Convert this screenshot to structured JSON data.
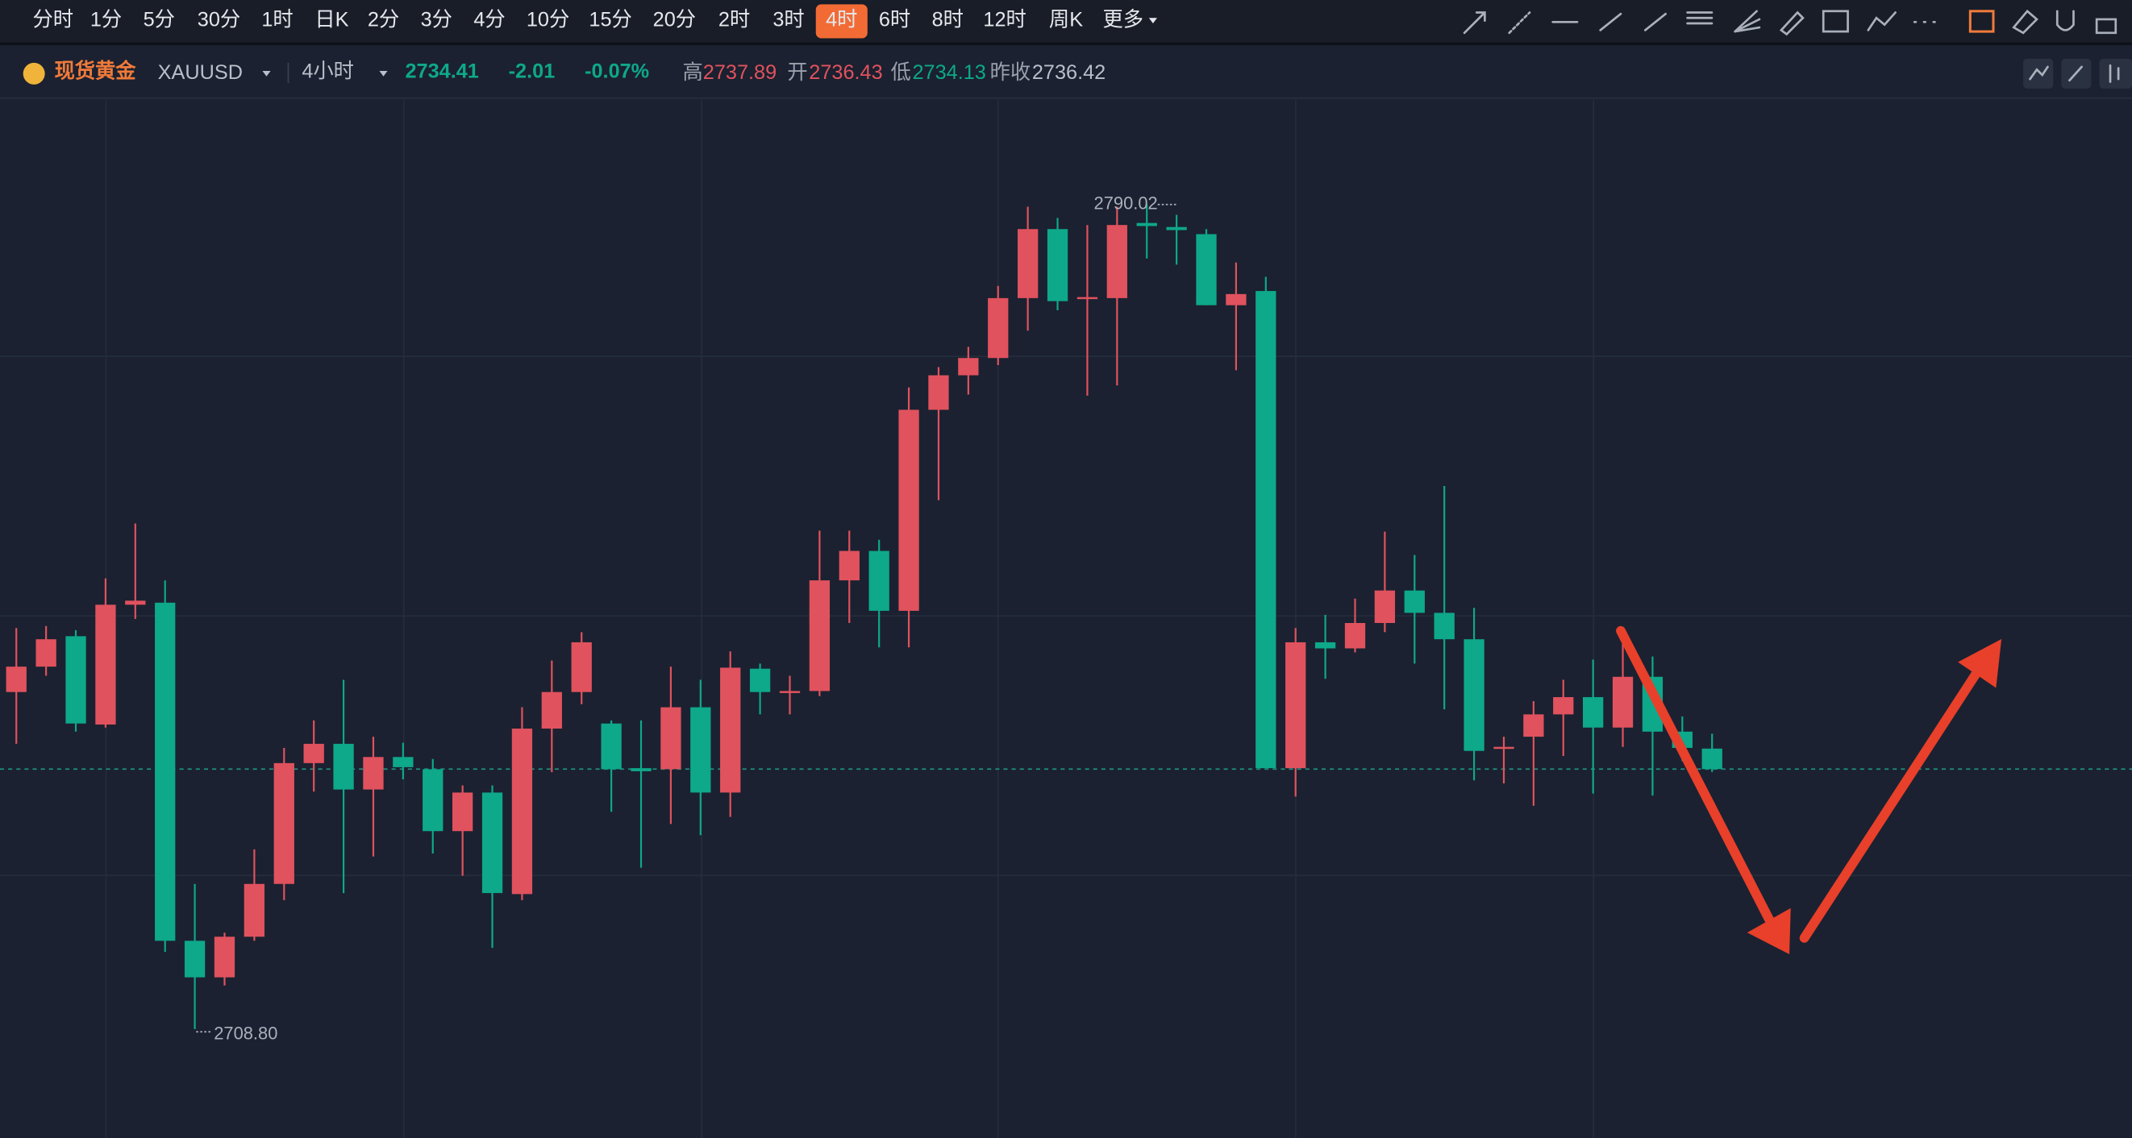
{
  "toolbar": {
    "timeframes": [
      "分时",
      "1分",
      "5分",
      "30分",
      "1时",
      "日K",
      "2分",
      "3分",
      "4分",
      "10分",
      "15分",
      "20分",
      "2时",
      "3时",
      "4时",
      "6时",
      "8时",
      "12时",
      "周K"
    ],
    "active": 14,
    "more": "更多"
  },
  "quote": {
    "name": "现货黄金",
    "symbol": "XAUUSD",
    "period": "4小时",
    "price": "2734.41",
    "change": "-2.01",
    "change_pct": "-0.07%",
    "high_label": "高",
    "high": "2737.89",
    "open_label": "开",
    "open": "2736.43",
    "low_label": "低",
    "low": "2734.13",
    "prev_close_label": "昨收",
    "prev_close": "2736.42"
  },
  "chart_data": {
    "type": "candlestick",
    "open": [
      2742.0,
      2744.5,
      2747.5,
      2738.8,
      2750.6,
      2750.8,
      2717.5,
      2713.9,
      2717.9,
      2723.1,
      2735.0,
      2736.9,
      2732.4,
      2735.6,
      2734.4,
      2728.3,
      2732.1,
      2722.1,
      2738.4,
      2742.0,
      2738.9,
      2734.5,
      2734.4,
      2740.5,
      2732.1,
      2744.3,
      2741.9,
      2742.1,
      2753.0,
      2755.9,
      2750.0,
      2769.8,
      2773.2,
      2774.9,
      2780.8,
      2787.6,
      2780.7,
      2780.8,
      2788.2,
      2787.8,
      2787.1,
      2780.1,
      2781.5,
      2734.5,
      2746.9,
      2746.3,
      2748.8,
      2752.0,
      2749.8,
      2747.2,
      2736.4,
      2737.6,
      2739.8,
      2741.5,
      2738.5,
      2743.5,
      2738.1,
      2736.43
    ],
    "high": [
      2748.3,
      2748.5,
      2748.1,
      2753.2,
      2758.6,
      2753.0,
      2723.1,
      2718.3,
      2726.5,
      2736.5,
      2739.2,
      2743.2,
      2737.6,
      2737.0,
      2735.4,
      2732.8,
      2732.8,
      2740.5,
      2745.1,
      2747.9,
      2739.2,
      2739.2,
      2744.5,
      2743.2,
      2746.0,
      2744.8,
      2743.6,
      2757.9,
      2757.9,
      2757.0,
      2772.0,
      2774.0,
      2776.0,
      2782.0,
      2789.8,
      2788.7,
      2788.0,
      2789.8,
      2790.02,
      2789.0,
      2787.6,
      2784.3,
      2782.9,
      2748.3,
      2749.6,
      2751.2,
      2757.8,
      2755.5,
      2762.3,
      2750.3,
      2737.6,
      2741.1,
      2743.2,
      2745.2,
      2747.9,
      2745.5,
      2739.6,
      2737.89
    ],
    "low": [
      2736.9,
      2743.6,
      2738.1,
      2738.5,
      2749.2,
      2716.4,
      2708.8,
      2713.1,
      2717.5,
      2721.5,
      2732.2,
      2722.2,
      2725.8,
      2733.4,
      2726.1,
      2723.9,
      2716.8,
      2721.5,
      2734.1,
      2740.8,
      2730.2,
      2724.7,
      2729.0,
      2727.9,
      2729.7,
      2739.8,
      2739.8,
      2741.6,
      2748.8,
      2746.4,
      2746.4,
      2760.9,
      2771.3,
      2774.2,
      2777.6,
      2779.6,
      2771.2,
      2772.2,
      2784.7,
      2784.1,
      2780.1,
      2773.7,
      2734.5,
      2731.7,
      2743.3,
      2745.9,
      2747.9,
      2744.8,
      2740.3,
      2733.3,
      2733.0,
      2730.8,
      2735.7,
      2732.0,
      2736.6,
      2731.8,
      2735.2,
      2734.13
    ],
    "close": [
      2744.5,
      2747.2,
      2738.9,
      2750.6,
      2751.0,
      2717.5,
      2713.9,
      2717.9,
      2723.1,
      2735.0,
      2736.9,
      2732.4,
      2735.6,
      2734.6,
      2728.3,
      2732.1,
      2722.2,
      2738.4,
      2742.0,
      2746.9,
      2734.4,
      2734.2,
      2740.5,
      2732.1,
      2744.4,
      2742.0,
      2742.1,
      2753.0,
      2755.9,
      2750.0,
      2769.8,
      2773.2,
      2774.9,
      2780.8,
      2787.6,
      2780.5,
      2780.9,
      2788.0,
      2787.9,
      2787.5,
      2780.1,
      2781.2,
      2734.5,
      2746.9,
      2746.3,
      2748.8,
      2752.0,
      2749.8,
      2747.2,
      2736.2,
      2736.6,
      2739.8,
      2741.5,
      2738.5,
      2743.5,
      2738.1,
      2736.5,
      2734.41
    ],
    "up_color": "#e0525e",
    "down_color": "#0ea88a",
    "ylim": [
      2698.1,
      2800.5
    ],
    "annotations": [
      {
        "value": 2790.02,
        "label": "2790.02"
      },
      {
        "value": 2708.8,
        "label": "2708.80"
      }
    ]
  }
}
